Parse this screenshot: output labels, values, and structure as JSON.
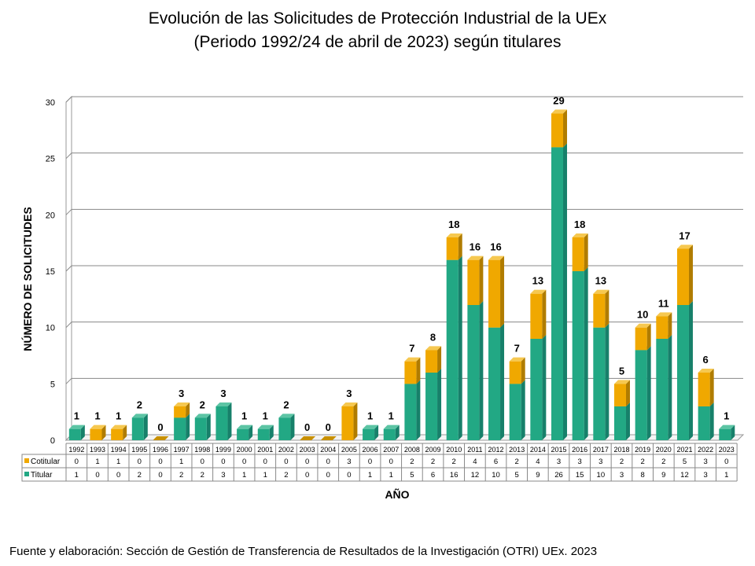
{
  "chart_data": {
    "type": "bar",
    "stacked": true,
    "title": "Evolución de las Solicitudes de Protección Industrial de la UEx",
    "subtitle": "(Periodo 1992/24 de abril de 2023) según titulares",
    "xlabel": "AÑO",
    "ylabel": "NÚMERO DE SOLICITUDES",
    "ylim": [
      0,
      30
    ],
    "yticks": [
      0,
      5,
      10,
      15,
      20,
      25,
      30
    ],
    "grid": true,
    "legend": "data-table",
    "categories": [
      "1992",
      "1993",
      "1994",
      "1995",
      "1996",
      "1997",
      "1998",
      "1999",
      "2000",
      "2001",
      "2002",
      "2003",
      "2004",
      "2005",
      "2006",
      "2007",
      "2008",
      "2009",
      "2010",
      "2011",
      "2012",
      "2013",
      "2014",
      "2015",
      "2016",
      "2017",
      "2018",
      "2019",
      "2020",
      "2021",
      "2022",
      "2023"
    ],
    "series": [
      {
        "name": "Cotitular",
        "color": "#f0a800",
        "values": [
          0,
          1,
          1,
          0,
          0,
          1,
          0,
          0,
          0,
          0,
          0,
          0,
          0,
          3,
          0,
          0,
          2,
          2,
          2,
          4,
          6,
          2,
          4,
          3,
          3,
          3,
          2,
          2,
          2,
          5,
          3,
          0
        ]
      },
      {
        "name": "Titular",
        "color": "#22a884",
        "values": [
          1,
          0,
          0,
          2,
          0,
          2,
          2,
          3,
          1,
          1,
          2,
          0,
          0,
          0,
          1,
          1,
          5,
          6,
          16,
          12,
          10,
          5,
          9,
          26,
          15,
          10,
          3,
          8,
          9,
          12,
          3,
          1
        ]
      }
    ],
    "totals": [
      1,
      1,
      1,
      2,
      0,
      3,
      2,
      3,
      1,
      1,
      2,
      0,
      0,
      3,
      1,
      1,
      7,
      8,
      18,
      16,
      16,
      7,
      13,
      29,
      18,
      13,
      5,
      10,
      11,
      17,
      6,
      1
    ]
  },
  "source": "Fuente y elaboración: Sección de Gestión de Transferencia de Resultados de la Investigación (OTRI) UEx. 2023"
}
